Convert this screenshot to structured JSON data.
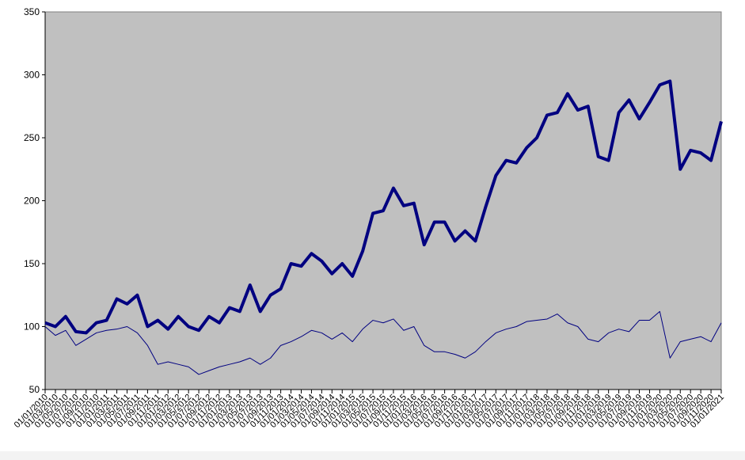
{
  "chart_data": {
    "type": "line",
    "categories": [
      "01/01/2010",
      "01/03/2010",
      "01/05/2010",
      "01/07/2010",
      "01/09/2010",
      "01/11/2010",
      "01/01/2011",
      "01/03/2011",
      "01/05/2011",
      "01/07/2011",
      "01/09/2011",
      "01/11/2011",
      "01/01/2012",
      "01/03/2012",
      "01/05/2012",
      "01/07/2012",
      "01/09/2012",
      "01/11/2012",
      "01/01/2013",
      "01/03/2013",
      "01/05/2013",
      "01/07/2013",
      "01/09/2013",
      "01/11/2013",
      "01/01/2014",
      "01/03/2014",
      "01/05/2014",
      "01/07/2014",
      "01/09/2014",
      "01/11/2014",
      "01/01/2015",
      "01/03/2015",
      "01/05/2015",
      "01/07/2015",
      "01/09/2015",
      "01/11/2015",
      "01/01/2016",
      "01/03/2016",
      "01/05/2016",
      "01/07/2016",
      "01/09/2016",
      "01/11/2016",
      "01/01/2017",
      "01/03/2017",
      "01/05/2017",
      "01/07/2017",
      "01/09/2017",
      "01/11/2017",
      "01/01/2018",
      "01/03/2018",
      "01/05/2018",
      "01/07/2018",
      "01/09/2018",
      "01/11/2018",
      "01/01/2019",
      "01/03/2019",
      "01/05/2019",
      "01/07/2019",
      "01/09/2019",
      "01/11/2019",
      "01/01/2020",
      "01/03/2020",
      "01/05/2020",
      "01/07/2020",
      "01/09/2020",
      "01/11/2020",
      "01/01/2021"
    ],
    "series": [
      {
        "color": "#000080",
        "width": 4,
        "values": [
          103,
          100,
          108,
          96,
          95,
          103,
          105,
          122,
          118,
          125,
          100,
          105,
          98,
          108,
          100,
          97,
          108,
          103,
          115,
          112,
          133,
          112,
          125,
          130,
          150,
          148,
          158,
          152,
          142,
          150,
          140,
          160,
          190,
          192,
          210,
          196,
          198,
          165,
          183,
          183,
          168,
          176,
          168,
          195,
          220,
          232,
          230,
          242,
          250,
          268,
          270,
          285,
          272,
          275,
          235,
          232,
          270,
          280,
          265,
          278,
          292,
          295,
          225,
          240,
          238,
          232,
          263
        ]
      },
      {
        "color": "#000080",
        "width": 1,
        "values": [
          100,
          93,
          97,
          85,
          90,
          95,
          97,
          98,
          100,
          95,
          85,
          70,
          72,
          70,
          68,
          62,
          65,
          68,
          70,
          72,
          75,
          70,
          75,
          85,
          88,
          92,
          97,
          95,
          90,
          95,
          88,
          98,
          105,
          103,
          106,
          97,
          100,
          85,
          80,
          80,
          78,
          75,
          80,
          88,
          95,
          98,
          100,
          104,
          105,
          106,
          110,
          103,
          100,
          90,
          88,
          95,
          98,
          96,
          105,
          105,
          112,
          75,
          88,
          90,
          92,
          88,
          103
        ]
      }
    ],
    "ylim": [
      50,
      350
    ],
    "yticks": [
      50,
      100,
      150,
      200,
      250,
      300,
      350
    ],
    "plot_background": "#c0c0c0"
  }
}
